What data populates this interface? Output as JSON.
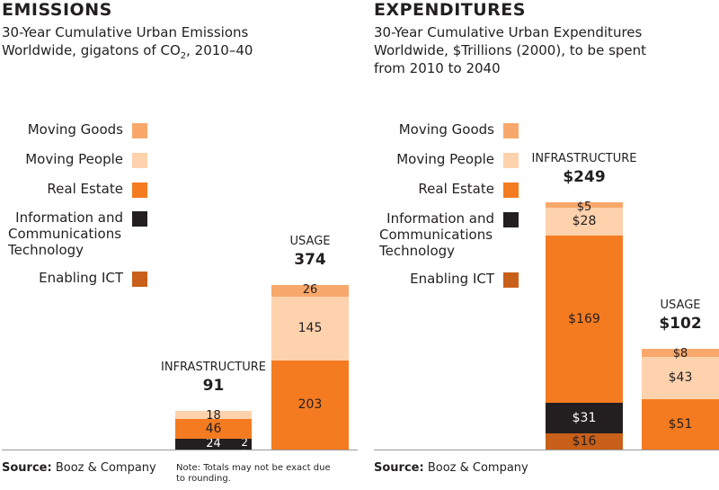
{
  "colors": {
    "moving_goods": "#f9a86b",
    "moving_people": "#fdd2ad",
    "real_estate": "#f47b20",
    "ict": "#231f20",
    "enabling_ict": "#c8601a"
  },
  "legend": [
    {
      "key": "moving_goods",
      "label": "Moving Goods"
    },
    {
      "key": "moving_people",
      "label": "Moving People"
    },
    {
      "key": "real_estate",
      "label": "Real Estate"
    },
    {
      "key": "ict",
      "label": "Information and Communications Technology"
    },
    {
      "key": "enabling_ict",
      "label": "Enabling ICT"
    }
  ],
  "emissions": {
    "title": "EMISSIONS",
    "subtitle_line1": "30-Year Cumulative Urban Emissions",
    "subtitle_line2_pre": "Worldwide, gigatons of CO",
    "subtitle_line2_sub": "2",
    "subtitle_line2_post": ", 2010–40",
    "source_label": "Source:",
    "source_text": "Booz & Company",
    "note": "Note: Totals may not be exact due to rounding."
  },
  "expenditures": {
    "title": "EXPENDITURES",
    "subtitle_line1": "30-Year Cumulative Urban Expenditures",
    "subtitle_line2": "Worldwide, $Trillions (2000), to be spent",
    "subtitle_line3": "from 2010 to 2040",
    "source_label": "Source:",
    "source_text": "Booz & Company"
  },
  "chart_data": [
    {
      "type": "bar",
      "stacked": true,
      "title": "EMISSIONS",
      "subtitle": "30-Year Cumulative Urban Emissions Worldwide, gigatons of CO2, 2010–40",
      "categories": [
        "INFRASTRUCTURE",
        "USAGE"
      ],
      "totals": [
        "91",
        "374"
      ],
      "series": [
        {
          "name": "Enabling ICT",
          "key": "enabling_ict",
          "values": [
            0,
            0
          ],
          "labels": [
            "",
            ""
          ]
        },
        {
          "name": "Information and Communications Technology",
          "key": "ict",
          "values": [
            24,
            0
          ],
          "labels": [
            "24",
            ""
          ],
          "extra_label": "2"
        },
        {
          "name": "Real Estate",
          "key": "real_estate",
          "values": [
            46,
            203
          ],
          "labels": [
            "46",
            "203"
          ]
        },
        {
          "name": "Moving People",
          "key": "moving_people",
          "values": [
            18,
            145
          ],
          "labels": [
            "18",
            "145"
          ]
        },
        {
          "name": "Moving Goods",
          "key": "moving_goods",
          "values": [
            0,
            26
          ],
          "labels": [
            "",
            "26"
          ]
        }
      ]
    },
    {
      "type": "bar",
      "stacked": true,
      "title": "EXPENDITURES",
      "subtitle": "30-Year Cumulative Urban Expenditures Worldwide, $Trillions (2000), to be spent from 2010 to 2040",
      "categories": [
        "INFRASTRUCTURE",
        "USAGE"
      ],
      "totals": [
        "$249",
        "$102"
      ],
      "series": [
        {
          "name": "Enabling ICT",
          "key": "enabling_ict",
          "values": [
            16,
            0
          ],
          "labels": [
            "$16",
            ""
          ]
        },
        {
          "name": "Information and Communications Technology",
          "key": "ict",
          "values": [
            31,
            0
          ],
          "labels": [
            "$31",
            ""
          ]
        },
        {
          "name": "Real Estate",
          "key": "real_estate",
          "values": [
            169,
            51
          ],
          "labels": [
            "$169",
            "$51"
          ]
        },
        {
          "name": "Moving People",
          "key": "moving_people",
          "values": [
            28,
            43
          ],
          "labels": [
            "$28",
            "$43"
          ]
        },
        {
          "name": "Moving Goods",
          "key": "moving_goods",
          "values": [
            5,
            8
          ],
          "labels": [
            "$5",
            "$8"
          ]
        }
      ]
    }
  ]
}
